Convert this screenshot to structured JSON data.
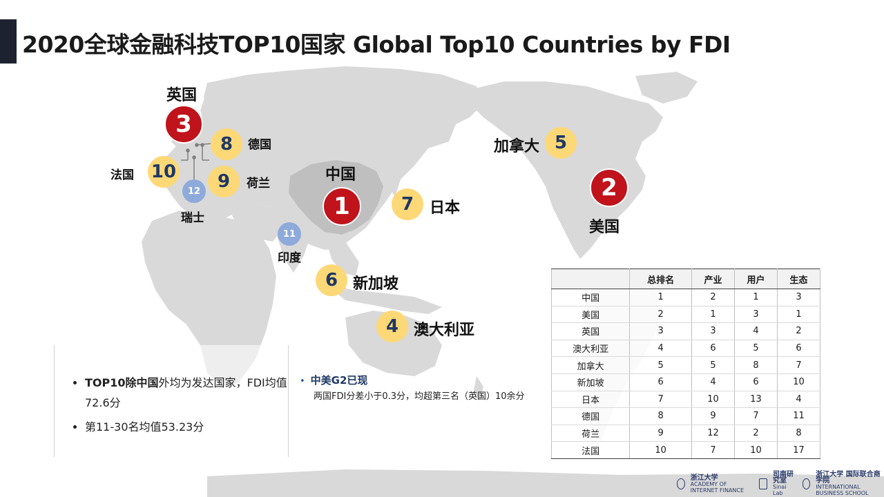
{
  "title": "2020全球金融科技TOP10国家 Global Top10 Countries by FDI",
  "markers": {
    "uk": {
      "rank": "3",
      "label": "英国"
    },
    "germany": {
      "rank": "8",
      "label": "德国"
    },
    "france": {
      "rank": "10",
      "label": "法国"
    },
    "netherlands": {
      "rank": "9",
      "label": "荷兰"
    },
    "switzerland": {
      "rank": "12",
      "label": "瑞士"
    },
    "china": {
      "rank": "1",
      "label": "中国"
    },
    "japan": {
      "rank": "7",
      "label": "日本"
    },
    "india": {
      "rank": "11",
      "label": "印度"
    },
    "singapore": {
      "rank": "6",
      "label": "新加坡"
    },
    "australia": {
      "rank": "4",
      "label": "澳大利亚"
    },
    "canada": {
      "rank": "5",
      "label": "加拿大"
    },
    "usa": {
      "rank": "2",
      "label": "美国"
    }
  },
  "notes_left": {
    "item1_a": "TOP10除",
    "item1_b": "中国",
    "item1_c": "外均为发达国家，FDI均值72.6分",
    "item2": "第11-30名均值53.23分"
  },
  "notes_right": {
    "head": "中美G2已现",
    "body": "两国FDI分差小于0.3分，均超第三名（英国）10余分"
  },
  "table": {
    "headers": [
      "",
      "总排名",
      "产业",
      "用户",
      "生态"
    ],
    "rows": [
      [
        "中国",
        "1",
        "2",
        "1",
        "3"
      ],
      [
        "美国",
        "2",
        "1",
        "3",
        "1"
      ],
      [
        "英国",
        "3",
        "3",
        "4",
        "2"
      ],
      [
        "澳大利亚",
        "4",
        "6",
        "5",
        "6"
      ],
      [
        "加拿大",
        "5",
        "5",
        "8",
        "7"
      ],
      [
        "新加坡",
        "6",
        "4",
        "6",
        "10"
      ],
      [
        "日本",
        "7",
        "10",
        "13",
        "4"
      ],
      [
        "德国",
        "8",
        "9",
        "7",
        "11"
      ],
      [
        "荷兰",
        "9",
        "12",
        "2",
        "8"
      ],
      [
        "法国",
        "10",
        "7",
        "10",
        "17"
      ]
    ]
  },
  "logos": {
    "zju_aif_cn": "浙江大学",
    "zju_aif_en": "ACADEMY OF INTERNET FINANCE",
    "sinai_cn": "司南研究室",
    "sinai_en": "Sinai Lab",
    "zju_ibs_cn": "浙江大学 国际联合商学院",
    "zju_ibs_en": "INTERNATIONAL BUSINESS SCHOOL"
  },
  "colors": {
    "top_rank": "#c0131b",
    "rank": "#fcd877",
    "other_rank": "#8eaadb",
    "land": "#d9d9d9",
    "china_land": "#bfbfbf"
  }
}
